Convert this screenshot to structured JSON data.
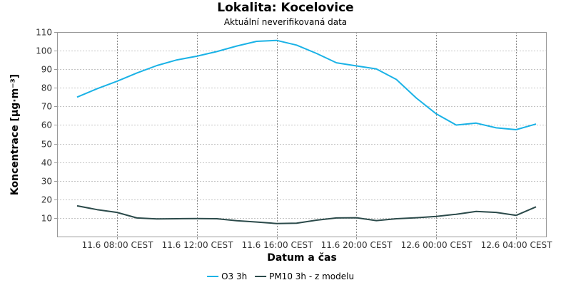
{
  "chart_data": {
    "type": "line",
    "title": "Lokalita: Kocelovice",
    "subtitle": "Aktuální neverifikovaná data",
    "xlabel": "Datum a čas",
    "ylabel": "Koncentrace [µg·m⁻³]",
    "ylim": [
      0,
      110
    ],
    "yticks": [
      10,
      20,
      30,
      40,
      50,
      60,
      70,
      80,
      90,
      100,
      110
    ],
    "xlim": [
      "11.6 05:00 CEST",
      "12.6 05:30 CEST"
    ],
    "xtick_labels": [
      "11.6 08:00 CEST",
      "11.6 12:00 CEST",
      "11.6 16:00 CEST",
      "11.6 20:00 CEST",
      "12.6 00:00 CEST",
      "12.6 04:00 CEST"
    ],
    "grid": true,
    "legend_position": "bottom",
    "series": [
      {
        "name": "O3 3h",
        "color": "#1ab2e6",
        "x": [
          "11.6 06:00 CEST",
          "11.6 07:00 CEST",
          "11.6 08:00 CEST",
          "11.6 09:00 CEST",
          "11.6 10:00 CEST",
          "11.6 11:00 CEST",
          "11.6 12:00 CEST",
          "11.6 13:00 CEST",
          "11.6 14:00 CEST",
          "11.6 15:00 CEST",
          "11.6 16:00 CEST",
          "11.6 17:00 CEST",
          "11.6 18:00 CEST",
          "11.6 19:00 CEST",
          "11.6 20:00 CEST",
          "11.6 21:00 CEST",
          "11.6 22:00 CEST",
          "11.6 23:00 CEST",
          "12.6 00:00 CEST",
          "12.6 01:00 CEST",
          "12.6 02:00 CEST",
          "12.6 03:00 CEST",
          "12.6 04:00 CEST",
          "12.6 05:00 CEST"
        ],
        "values": [
          75,
          79.5,
          83.5,
          88,
          92,
          95,
          97,
          99.5,
          102.5,
          105,
          105.5,
          103,
          98.5,
          93.5,
          91.8,
          90.2,
          84.5,
          74.5,
          66,
          60,
          61,
          58.5,
          57.5,
          60.5
        ]
      },
      {
        "name": "PM10 3h - z modelu",
        "color": "#2b4a4a",
        "x": [
          "11.6 06:00 CEST",
          "11.6 07:00 CEST",
          "11.6 08:00 CEST",
          "11.6 09:00 CEST",
          "11.6 10:00 CEST",
          "11.6 11:00 CEST",
          "11.6 12:00 CEST",
          "11.6 13:00 CEST",
          "11.6 14:00 CEST",
          "11.6 15:00 CEST",
          "11.6 16:00 CEST",
          "11.6 17:00 CEST",
          "11.6 18:00 CEST",
          "11.6 19:00 CEST",
          "11.6 20:00 CEST",
          "11.6 21:00 CEST",
          "11.6 22:00 CEST",
          "11.6 23:00 CEST",
          "12.6 00:00 CEST",
          "12.6 01:00 CEST",
          "12.6 02:00 CEST",
          "12.6 03:00 CEST",
          "12.6 04:00 CEST",
          "12.6 05:00 CEST"
        ],
        "values": [
          16.5,
          14.5,
          13,
          10,
          9.5,
          9.6,
          9.7,
          9.6,
          8.5,
          7.8,
          7,
          7.2,
          8.8,
          10,
          10.1,
          8.6,
          9.6,
          10.1,
          10.8,
          12,
          13.5,
          13,
          11.4,
          16
        ]
      }
    ]
  }
}
